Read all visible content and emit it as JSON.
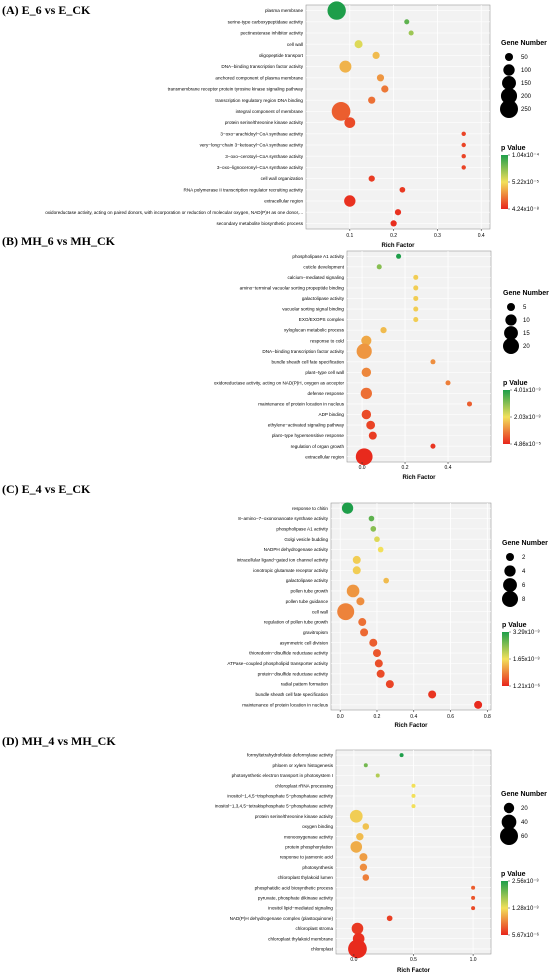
{
  "chart_data": [
    {
      "type": "scatter",
      "title": "(A) E_6 vs E_CK",
      "xlabel": "Rich Factor",
      "xticks": [
        "0.1",
        "0.2",
        "0.3",
        "0.4"
      ],
      "xlim": [
        0,
        0.42
      ],
      "size_legend": {
        "title": "Gene Number",
        "labels": [
          "50",
          "100",
          "150",
          "200",
          "250"
        ],
        "values": [
          50,
          100,
          150,
          200,
          250
        ]
      },
      "color_legend": {
        "title": "p Value",
        "labels": [
          "1.04x10⁻⁴",
          "5.22x10⁻⁵",
          "4.24x10⁻⁸"
        ],
        "high_color": "#1e9e4a",
        "mid_color": "#f2e05a",
        "low_color": "#e8261c"
      },
      "terms": [
        "plasma membrane",
        "serine-type carboxypeptidase activity",
        "pectinesterase inhibitor activity",
        "cell wall",
        "oligopeptide transport",
        "DNA−binding transcription factor activity",
        "anchored component of plasma membrane",
        "transmembrane receptor protein tyrosine kinase signaling pathway",
        "transcription regulatory region DNA binding",
        "integral component of membrane",
        "protein serine/threonine kinase activity",
        "3−oxo−arachidoyl−CoA synthase activity",
        "very−long−chain 3−ketoacyl−CoA synthase activity",
        "3−oxo−cerotoyl−CoA synthase activity",
        "3−oxo−lignoceronyl−CoA synthase activity",
        "cell wall organization",
        "RNA polymerase II transcription regulator recruiting activity",
        "extracellular region",
        "oxidoreductase activity, acting on paired donors, with incorporation or reduction of molecular oxygen, NAD(P)H as one donor, and incorporation of one ...",
        "secondary metabolite biosynthetic process"
      ],
      "x": [
        0.07,
        0.23,
        0.24,
        0.12,
        0.16,
        0.09,
        0.17,
        0.18,
        0.15,
        0.08,
        0.1,
        0.36,
        0.36,
        0.36,
        0.36,
        0.15,
        0.22,
        0.1,
        0.21,
        0.2
      ],
      "gene_number": [
        260,
        20,
        20,
        50,
        40,
        110,
        40,
        40,
        40,
        270,
        90,
        15,
        15,
        15,
        15,
        30,
        25,
        100,
        30,
        30
      ],
      "color_level": [
        0.0,
        0.15,
        0.3,
        0.45,
        0.6,
        0.62,
        0.7,
        0.78,
        0.8,
        0.85,
        0.9,
        0.92,
        0.92,
        0.92,
        0.92,
        0.94,
        0.95,
        0.97,
        0.97,
        0.98
      ]
    },
    {
      "type": "scatter",
      "title": "(B) MH_6 vs MH_CK",
      "xlabel": "Rich Factor",
      "xticks": [
        "0.0",
        "0.2",
        "0.4"
      ],
      "xlim": [
        -0.07,
        0.6
      ],
      "size_legend": {
        "title": "Gene Number",
        "labels": [
          "5",
          "10",
          "15",
          "20"
        ],
        "values": [
          5,
          10,
          15,
          20
        ]
      },
      "color_legend": {
        "title": "p Value",
        "labels": [
          "4.01x10⁻³",
          "2.03x10⁻³",
          "4.86x10⁻⁵"
        ],
        "high_color": "#1e9e4a",
        "mid_color": "#f2e05a",
        "low_color": "#e8261c"
      },
      "terms": [
        "phospholipase A1 activity",
        "cuticle development",
        "calcium−mediated signaling",
        "amino−terminal vacuolar sorting propeptide binding",
        "galactolipase activity",
        "vacuolar sorting signal binding",
        "EXO/EXOPS complex",
        "xyloglucan metabolic process",
        "response to cold",
        "DNA−binding transcription factor activity",
        "bundle sheath cell fate specification",
        "plant−type cell wall",
        "oxidoreductase activity, acting on NAD(P)H, oxygen as acceptor",
        "defense response",
        "maintenance of protein location in nucleus",
        "ADP binding",
        "ethylene−activated signaling pathway",
        "plant−type hypersensitive response",
        "regulation of organ growth",
        "extracellular region"
      ],
      "x": [
        0.17,
        0.08,
        0.25,
        0.25,
        0.25,
        0.25,
        0.25,
        0.1,
        0.02,
        0.01,
        0.33,
        0.02,
        0.4,
        0.02,
        0.5,
        0.02,
        0.04,
        0.05,
        0.33,
        0.01
      ],
      "gene_number": [
        2,
        2,
        2,
        2,
        2,
        2,
        2,
        3,
        8,
        18,
        2,
        7,
        2,
        10,
        2,
        7,
        6,
        5,
        2,
        22
      ],
      "color_level": [
        0.0,
        0.25,
        0.55,
        0.55,
        0.55,
        0.55,
        0.55,
        0.6,
        0.65,
        0.7,
        0.72,
        0.74,
        0.76,
        0.8,
        0.85,
        0.9,
        0.92,
        0.94,
        0.96,
        0.99
      ]
    },
    {
      "type": "scatter",
      "title": "(C) E_4 vs E_CK",
      "xlabel": "Rich Factor",
      "xticks": [
        "0.0",
        "0.2",
        "0.4",
        "0.6",
        "0.8"
      ],
      "xlim": [
        -0.05,
        0.82
      ],
      "size_legend": {
        "title": "Gene Number",
        "labels": [
          "2",
          "4",
          "6",
          "8"
        ],
        "values": [
          2,
          4,
          6,
          8
        ]
      },
      "color_legend": {
        "title": "p Value",
        "labels": [
          "3.29x10⁻³",
          "1.65x10⁻³",
          "1.21x10⁻⁶"
        ],
        "high_color": "#1e9e4a",
        "mid_color": "#f2e05a",
        "low_color": "#e8261c"
      },
      "terms": [
        "response to chitin",
        "8−amino−7−oxononanoate synthase activity",
        "phospholipase A1 activity",
        "Golgi vesicle budding",
        "NADPH dehydrogenase activity",
        "intracellular ligand−gated ion channel activity",
        "ionotropic glutamate receptor activity",
        "galactolipase activity",
        "pollen tube growth",
        "pollen tube guidance",
        "cell wall",
        "regulation of pollen tube growth",
        "gravitropism",
        "asymmetric cell division",
        "thioredoxin−disulfide reductase activity",
        "ATPase−coupled phospholipid transporter activity",
        "protein−disulfide reductase activity",
        "radial pattern formation",
        "bundle sheath cell fate specification",
        "maintenance of protein location in nucleus"
      ],
      "x": [
        0.04,
        0.17,
        0.18,
        0.2,
        0.22,
        0.09,
        0.09,
        0.25,
        0.07,
        0.11,
        0.03,
        0.12,
        0.13,
        0.18,
        0.2,
        0.21,
        0.22,
        0.27,
        0.5,
        0.75
      ],
      "gene_number": [
        4,
        1,
        1,
        1,
        1,
        2,
        2,
        1,
        5,
        2,
        9,
        2,
        2,
        2,
        2,
        2,
        2,
        2,
        2,
        2
      ],
      "color_level": [
        0.0,
        0.15,
        0.25,
        0.45,
        0.5,
        0.55,
        0.55,
        0.6,
        0.7,
        0.72,
        0.75,
        0.8,
        0.82,
        0.85,
        0.87,
        0.89,
        0.9,
        0.92,
        0.96,
        0.99
      ]
    },
    {
      "type": "scatter",
      "title": "(D) MH_4 vs MH_CK",
      "xlabel": "Rich Factor",
      "xticks": [
        "0.0",
        "0.5",
        "1.0"
      ],
      "xlim": [
        -0.15,
        1.15
      ],
      "size_legend": {
        "title": "Gene Number",
        "labels": [
          "20",
          "40",
          "60"
        ],
        "values": [
          20,
          40,
          60
        ]
      },
      "color_legend": {
        "title": "p Value",
        "labels": [
          "2.56x10⁻³",
          "1.28x10⁻³",
          "5.67x10⁻⁶"
        ],
        "high_color": "#1e9e4a",
        "mid_color": "#f2e05a",
        "low_color": "#e8261c"
      },
      "terms": [
        "formyltetrahydrofolate deformylase activity",
        "phloem or xylem histogenesis",
        "photosynthetic electron transport in photosystem I",
        "chloroplast rRNA processing",
        "inositol−1,4,5−trisphosphate 5−phosphatase activity",
        "inositol−1,3,4,5−tetrakisphosphate 5−phosphatase activity",
        "protein serine/threonine kinase activity",
        "oxygen binding",
        "monooxygenase activity",
        "protein phosphorylation",
        "response to jasmonic acid",
        "photosynthesis",
        "chloroplast thylakoid lumen",
        "phosphatidic acid biosynthetic process",
        "pyruvate, phosphate dikinase activity",
        "inositol lipid−mediated signaling",
        "NAD(P)H dehydrogenase complex (plastoquinone)",
        "chloroplast stroma",
        "chloroplast thylakoid membrane",
        "chloroplast"
      ],
      "x": [
        0.4,
        0.1,
        0.2,
        0.5,
        0.5,
        0.5,
        0.02,
        0.1,
        0.05,
        0.02,
        0.08,
        0.08,
        0.1,
        1.0,
        1.0,
        1.0,
        0.3,
        0.03,
        0.04,
        0.03
      ],
      "gene_number": [
        3,
        3,
        3,
        3,
        3,
        3,
        30,
        8,
        10,
        25,
        12,
        10,
        8,
        3,
        3,
        3,
        6,
        25,
        25,
        65
      ],
      "color_level": [
        0.0,
        0.2,
        0.35,
        0.5,
        0.5,
        0.5,
        0.55,
        0.58,
        0.6,
        0.64,
        0.68,
        0.72,
        0.76,
        0.85,
        0.87,
        0.9,
        0.93,
        0.95,
        0.97,
        0.99
      ]
    }
  ]
}
